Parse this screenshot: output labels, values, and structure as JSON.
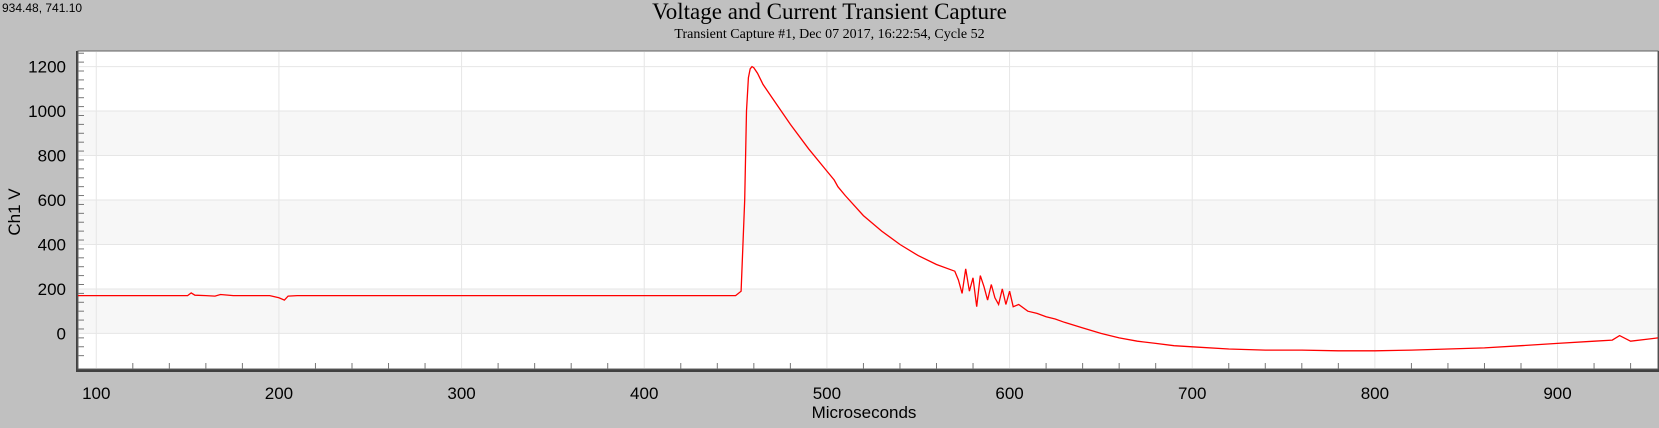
{
  "cursor_readout": "934.48, 741.10",
  "chart_data": {
    "type": "line",
    "title": "Voltage and Current Transient Capture",
    "subtitle": "Transient Capture #1, Dec 07 2017, 16:22:54,  Cycle 52",
    "xlabel": "Microseconds",
    "ylabel": "Ch1 V",
    "xlim": [
      90,
      955
    ],
    "ylim": [
      -160,
      1270
    ],
    "xticks": [
      100,
      200,
      300,
      400,
      500,
      600,
      700,
      800,
      900
    ],
    "yticks": [
      0,
      200,
      400,
      600,
      800,
      1000,
      1200
    ],
    "grid": true,
    "series_color": "#ff0000",
    "series": [
      {
        "x": [
          90,
          150,
          152,
          154,
          160,
          165,
          168,
          175,
          180,
          195,
          200,
          203,
          205,
          210,
          250,
          300,
          420,
          450,
          453,
          455,
          456,
          457,
          458,
          459,
          460,
          462,
          465,
          470,
          475,
          480,
          490,
          500,
          504,
          506,
          510,
          520,
          530,
          540,
          550,
          560,
          570,
          572,
          574,
          576,
          578,
          580,
          582,
          584,
          586,
          588,
          590,
          592,
          594,
          596,
          598,
          600,
          602,
          605,
          610,
          615,
          620,
          625,
          630,
          640,
          650,
          660,
          670,
          680,
          690,
          700,
          720,
          740,
          760,
          780,
          800,
          820,
          840,
          860,
          880,
          900,
          920,
          930,
          934,
          940,
          950,
          955
        ],
        "y": [
          170,
          170,
          182,
          172,
          170,
          168,
          175,
          170,
          170,
          170,
          160,
          150,
          168,
          170,
          170,
          170,
          170,
          170,
          190,
          600,
          1000,
          1150,
          1190,
          1200,
          1195,
          1170,
          1120,
          1060,
          1000,
          940,
          830,
          730,
          690,
          660,
          620,
          530,
          460,
          400,
          350,
          310,
          280,
          240,
          180,
          290,
          190,
          250,
          120,
          260,
          210,
          150,
          220,
          160,
          130,
          200,
          130,
          190,
          120,
          130,
          100,
          90,
          75,
          65,
          50,
          25,
          0,
          -20,
          -35,
          -45,
          -55,
          -60,
          -70,
          -75,
          -75,
          -78,
          -78,
          -75,
          -70,
          -65,
          -55,
          -45,
          -35,
          -30,
          -10,
          -35,
          -25,
          -20
        ]
      }
    ]
  }
}
